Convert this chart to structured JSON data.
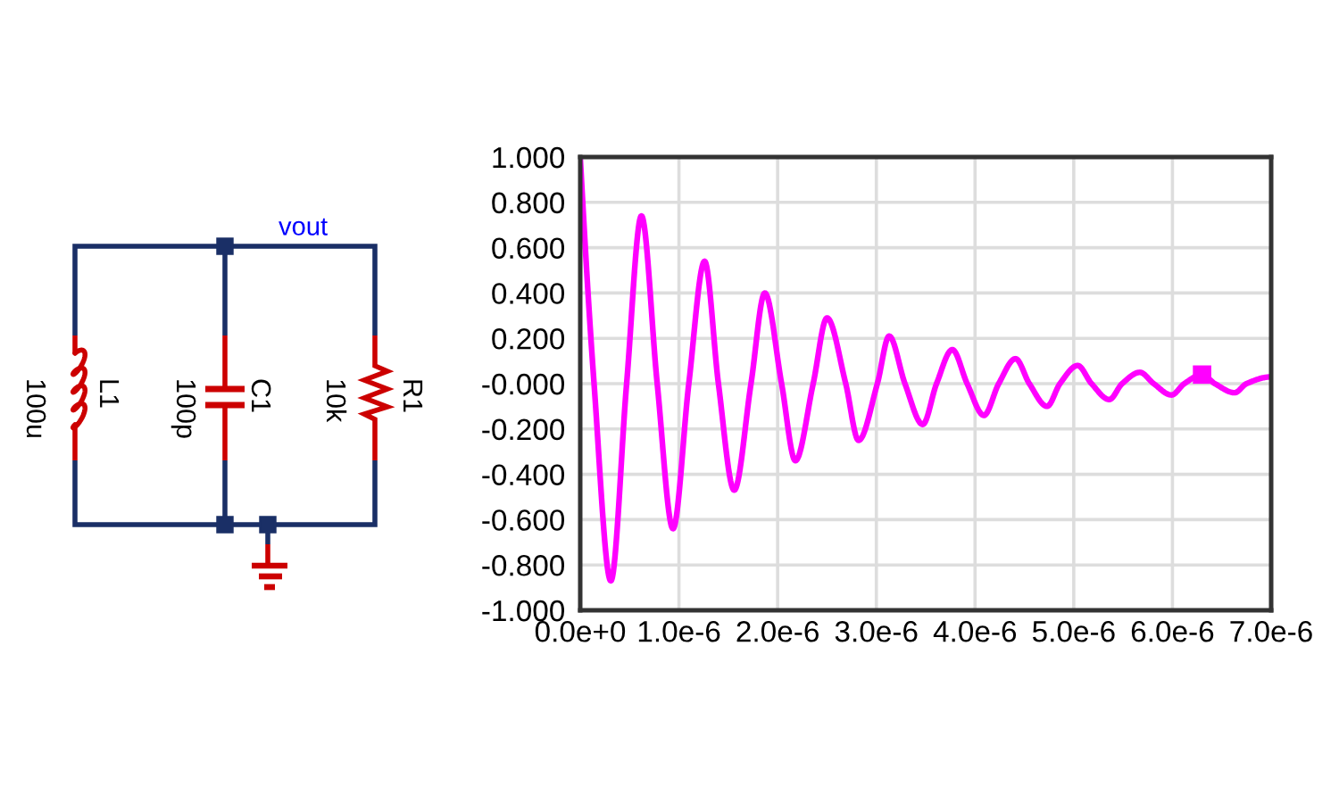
{
  "chart_data": [
    {
      "type": "other",
      "annotations": [
        "vout",
        "L1",
        "100u",
        "C1",
        "100p",
        "R1",
        "10k"
      ]
    },
    {
      "type": "line",
      "x": [
        0,
        1.4e-07,
        3.1e-07,
        4.7e-07,
        6.2e-07,
        7.8e-07,
        9.4e-07,
        1.1e-06,
        1.26e-06,
        1.4e-06,
        1.56e-06,
        1.73e-06,
        1.87e-06,
        2.04e-06,
        2.18e-06,
        2.36e-06,
        2.5e-06,
        2.69e-06,
        2.82e-06,
        3.01e-06,
        3.13e-06,
        3.29e-06,
        3.47e-06,
        3.61e-06,
        3.77e-06,
        3.92e-06,
        4.09e-06,
        4.24e-06,
        4.41e-06,
        4.55e-06,
        4.73e-06,
        4.86e-06,
        5.04e-06,
        5.18e-06,
        5.36e-06,
        5.49e-06,
        5.67e-06,
        5.81e-06,
        5.99e-06,
        6.12e-06,
        6.3e-06,
        6.43e-06,
        6.63e-06,
        6.75e-06,
        7e-06
      ],
      "series": [
        {
          "color": "#ff00ff",
          "values": [
            1,
            0,
            -0.87,
            0,
            0.74,
            0,
            -0.64,
            0,
            0.54,
            0,
            -0.47,
            0,
            0.4,
            0,
            -0.34,
            0,
            0.29,
            0,
            -0.25,
            0,
            0.21,
            0,
            -0.18,
            0,
            0.15,
            0,
            -0.14,
            0,
            0.11,
            0,
            -0.1,
            0,
            0.08,
            0,
            -0.07,
            0,
            0.05,
            0,
            -0.05,
            0,
            0.04,
            0,
            -0.04,
            0,
            0.03
          ]
        },
        {
          "type": "scatter",
          "marker": "square",
          "color": "#ff00ff",
          "x": [
            6.3e-06
          ],
          "values": [
            0.04
          ]
        }
      ],
      "xlim": [
        0,
        7e-06
      ],
      "xticks": [
        {
          "value": 0,
          "label": "0.0e+0"
        },
        {
          "value": 1e-06,
          "label": "1.0e-6"
        },
        {
          "value": 2e-06,
          "label": "2.0e-6"
        },
        {
          "value": 3e-06,
          "label": "3.0e-6"
        },
        {
          "value": 4e-06,
          "label": "4.0e-6"
        },
        {
          "value": 5e-06,
          "label": "5.0e-6"
        },
        {
          "value": 6e-06,
          "label": "6.0e-6"
        },
        {
          "value": 7e-06,
          "label": "7.0e-6"
        }
      ],
      "ylim": [
        -1,
        1
      ],
      "yticks": [
        {
          "value": -1,
          "label": "-1.000"
        },
        {
          "value": -0.8,
          "label": "-0.800"
        },
        {
          "value": -0.6,
          "label": "-0.600"
        },
        {
          "value": -0.4,
          "label": "-0.400"
        },
        {
          "value": -0.2,
          "label": "-0.200"
        },
        {
          "value": 0,
          "label": "-0.000"
        },
        {
          "value": 0.2,
          "label": "0.200"
        },
        {
          "value": 0.4,
          "label": "0.400"
        },
        {
          "value": 0.6,
          "label": "0.600"
        },
        {
          "value": 0.8,
          "label": "0.800"
        },
        {
          "value": 1,
          "label": "1.000"
        }
      ],
      "grid": true
    }
  ]
}
